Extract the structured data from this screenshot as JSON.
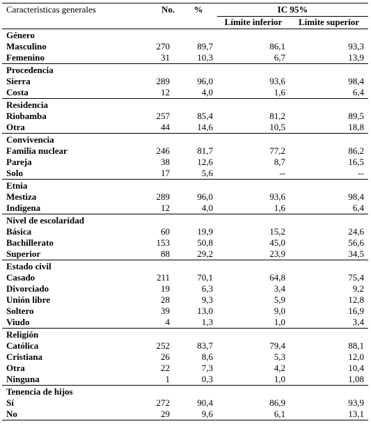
{
  "header": {
    "characteristics": "Características generales",
    "no": "No.",
    "pct": "%",
    "ic": "IC 95%",
    "lower": "Límite inferior",
    "upper": "Límite superior"
  },
  "groups": [
    {
      "name": "Género",
      "rows": [
        {
          "label": "Masculino",
          "n": "270",
          "pct": "89,7",
          "lower": "86,1",
          "upper": "93,3"
        },
        {
          "label": "Femenino",
          "n": "31",
          "pct": "10,3",
          "lower": "6,7",
          "upper": "13,9"
        }
      ]
    },
    {
      "name": "Procedencia",
      "rows": [
        {
          "label": "Sierra",
          "n": "289",
          "pct": "96,0",
          "lower": "93,6",
          "upper": "98,4"
        },
        {
          "label": "Costa",
          "n": "12",
          "pct": "4,0",
          "lower": "1,6",
          "upper": "6,4"
        }
      ]
    },
    {
      "name": "Residencia",
      "rows": [
        {
          "label": "Riobamba",
          "n": "257",
          "pct": "85,4",
          "lower": "81,2",
          "upper": "89,5"
        },
        {
          "label": "Otra",
          "n": "44",
          "pct": "14,6",
          "lower": "10,5",
          "upper": "18,8"
        }
      ]
    },
    {
      "name": "Convivencia",
      "rows": [
        {
          "label": "Familia nuclear",
          "n": "246",
          "pct": "81,7",
          "lower": "77,2",
          "upper": "86,2"
        },
        {
          "label": "Pareja",
          "n": "38",
          "pct": "12,6",
          "lower": "8,7",
          "upper": "16,5"
        },
        {
          "label": "Solo",
          "n": "17",
          "pct": "5,6",
          "lower": "--",
          "upper": "--"
        }
      ]
    },
    {
      "name": "Etnia",
      "rows": [
        {
          "label": "Mestiza",
          "n": "289",
          "pct": "96,0",
          "lower": "93,6",
          "upper": "98,4"
        },
        {
          "label": "Indígena",
          "n": "12",
          "pct": "4,0",
          "lower": "1,6",
          "upper": "6,4"
        }
      ]
    },
    {
      "name": "Nivel de escolaridad",
      "rows": [
        {
          "label": "Básica",
          "n": "60",
          "pct": "19,9",
          "lower": "15,2",
          "upper": "24,6"
        },
        {
          "label": "Bachillerato",
          "n": "153",
          "pct": "50,8",
          "lower": "45,0",
          "upper": "56,6"
        },
        {
          "label": "Superior",
          "n": "88",
          "pct": "29,2",
          "lower": "23,9",
          "upper": "34,5"
        }
      ]
    },
    {
      "name": "Estado civil",
      "rows": [
        {
          "label": "Casado",
          "n": "211",
          "pct": "70,1",
          "lower": "64,8",
          "upper": "75,4"
        },
        {
          "label": "Divorciado",
          "n": "19",
          "pct": "6,3",
          "lower": "3,4",
          "upper": "9,2"
        },
        {
          "label": "Unión libre",
          "n": "28",
          "pct": "9,3",
          "lower": "5,9",
          "upper": "12,8"
        },
        {
          "label": "Soltero",
          "n": "39",
          "pct": "13,0",
          "lower": "9,0",
          "upper": "16,9"
        },
        {
          "label": "Viudo",
          "n": "4",
          "pct": "1,3",
          "lower": "1,0",
          "upper": "3,4"
        }
      ]
    },
    {
      "name": "Religión",
      "rows": [
        {
          "label": "Católica",
          "n": "252",
          "pct": "83,7",
          "lower": "79,4",
          "upper": "88,1"
        },
        {
          "label": "Cristiana",
          "n": "26",
          "pct": "8,6",
          "lower": "5,3",
          "upper": "12,0"
        },
        {
          "label": "Otra",
          "n": "22",
          "pct": "7,3",
          "lower": "4,2",
          "upper": "10,4"
        },
        {
          "label": "Ninguna",
          "n": "1",
          "pct": "0,3",
          "lower": "1,0",
          "upper": "1,08"
        }
      ]
    },
    {
      "name": "Tenencia de hijos",
      "rows": [
        {
          "label": "Sí",
          "n": "272",
          "pct": "90,4",
          "lower": "86,9",
          "upper": "93,9"
        },
        {
          "label": "No",
          "n": "29",
          "pct": "9,6",
          "lower": "6,1",
          "upper": "13,1"
        }
      ]
    }
  ]
}
